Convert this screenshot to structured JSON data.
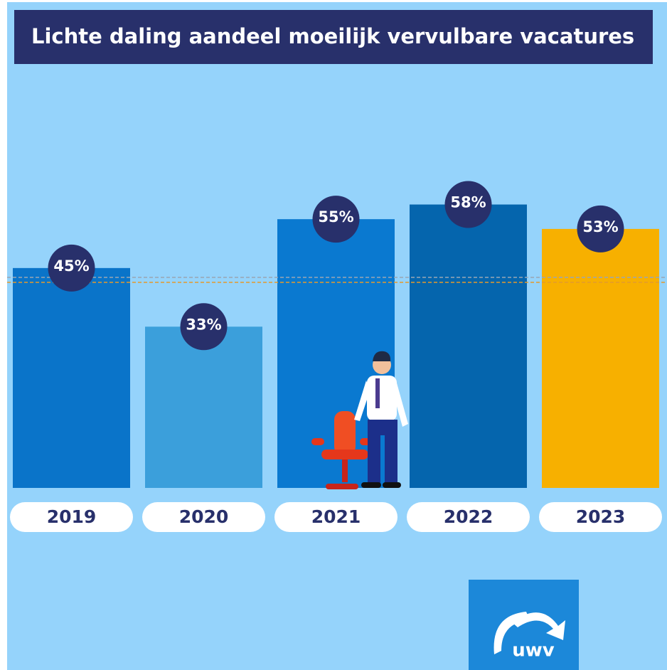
{
  "chart_data": {
    "type": "bar",
    "title": "Lichte daling aandeel moeilijk vervulbare vacatures",
    "categories": [
      "2019",
      "2020",
      "2021",
      "2022",
      "2023"
    ],
    "values": [
      45,
      33,
      55,
      58,
      53
    ],
    "value_labels": [
      "45%",
      "33%",
      "55%",
      "58%",
      "53%"
    ],
    "colors": [
      "#0a74c9",
      "#3b9fdb",
      "#0a79d0",
      "#0565ad",
      "#f7b000"
    ],
    "logo": "uwv"
  }
}
